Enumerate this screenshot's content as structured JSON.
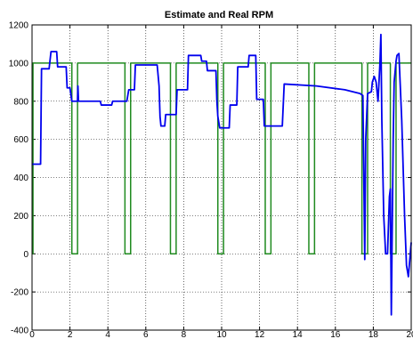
{
  "chart_data": {
    "type": "line",
    "title": "Estimate and Real RPM",
    "xlabel": "",
    "ylabel": "",
    "xlim": [
      0,
      20
    ],
    "ylim": [
      -400,
      1200
    ],
    "xticks": [
      "0",
      "2",
      "4",
      "6",
      "8",
      "10",
      "12",
      "14",
      "16",
      "18",
      "20"
    ],
    "yticks": [
      "-400",
      "-200",
      "0",
      "200",
      "400",
      "600",
      "800",
      "1000",
      "1200"
    ],
    "grid": true,
    "series": [
      {
        "color": "#1f8a1f",
        "x": [
          0,
          0.05,
          0.05,
          2.1,
          2.1,
          2.4,
          2.4,
          4.9,
          4.9,
          5.2,
          5.2,
          7.3,
          7.3,
          7.6,
          7.6,
          9.8,
          9.8,
          10.1,
          10.1,
          12.3,
          12.3,
          12.6,
          12.6,
          14.6,
          14.6,
          14.9,
          14.9,
          17.4,
          17.4,
          17.7,
          17.7,
          18.9,
          18.9,
          19.2,
          19.2,
          20
        ],
        "y": [
          0,
          0,
          1000,
          1000,
          0,
          0,
          1000,
          1000,
          0,
          0,
          1000,
          1000,
          0,
          0,
          1000,
          1000,
          0,
          0,
          1000,
          1000,
          0,
          0,
          1000,
          1000,
          0,
          0,
          1000,
          1000,
          0,
          0,
          1000,
          1000,
          0,
          0,
          1000,
          1000
        ]
      },
      {
        "color": "#0000ee",
        "x": [
          0,
          0.4,
          0.45,
          0.5,
          0.6,
          0.9,
          1.0,
          1.3,
          1.35,
          1.8,
          1.85,
          2.0,
          2.1,
          2.4,
          2.42,
          2.45,
          2.5,
          3.6,
          3.65,
          4.2,
          4.25,
          4.8,
          4.85,
          5.0,
          5.1,
          5.4,
          5.45,
          6.0,
          6.05,
          6.6,
          6.7,
          6.75,
          6.8,
          7.0,
          7.05,
          7.5,
          7.6,
          7.65,
          8.2,
          8.25,
          8.9,
          8.95,
          9.2,
          9.25,
          9.7,
          9.75,
          9.8,
          9.9,
          10.4,
          10.45,
          10.8,
          10.85,
          11.4,
          11.45,
          11.8,
          11.85,
          12.2,
          12.25,
          12.5,
          12.6,
          12.65,
          13.2,
          13.3,
          15.0,
          16.5,
          17.3,
          17.45,
          17.55,
          17.6,
          17.7,
          17.9,
          17.95,
          18.05,
          18.15,
          18.25,
          18.35,
          18.4,
          18.45,
          18.55,
          18.65,
          18.75,
          18.85,
          18.9,
          18.95,
          19.05,
          19.1,
          19.2,
          19.25,
          19.35,
          19.5,
          19.65,
          19.75,
          19.85,
          19.95,
          20
        ],
        "y": [
          470,
          470,
          470,
          970,
          970,
          970,
          1060,
          1060,
          980,
          980,
          870,
          870,
          800,
          800,
          880,
          800,
          800,
          800,
          780,
          780,
          800,
          800,
          800,
          800,
          860,
          860,
          990,
          990,
          990,
          990,
          880,
          720,
          670,
          670,
          730,
          730,
          730,
          860,
          860,
          1040,
          1040,
          1010,
          1010,
          960,
          960,
          800,
          720,
          660,
          660,
          780,
          780,
          980,
          980,
          1040,
          1040,
          810,
          810,
          670,
          670,
          670,
          670,
          670,
          890,
          880,
          860,
          840,
          830,
          -30,
          600,
          840,
          850,
          900,
          930,
          900,
          800,
          1000,
          1150,
          700,
          200,
          0,
          0,
          300,
          340,
          -320,
          600,
          900,
          1010,
          1040,
          1050,
          700,
          200,
          -60,
          -120,
          0,
          60
        ]
      }
    ]
  }
}
